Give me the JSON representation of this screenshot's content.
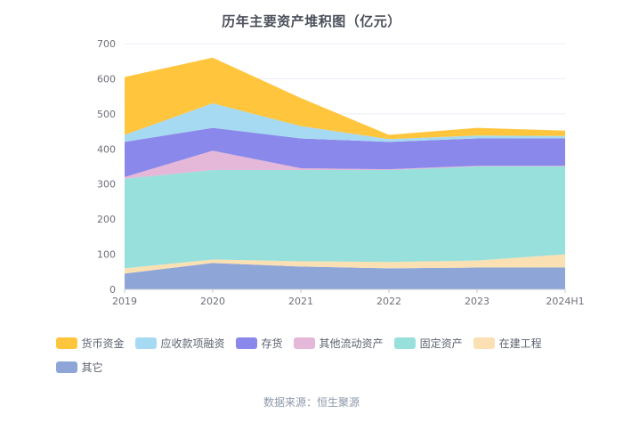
{
  "title": "历年主要资产堆积图（亿元）",
  "footer": "数据来源：恒生聚源",
  "chart_data": {
    "type": "area",
    "stacked": true,
    "title": "历年主要资产堆积图（亿元）",
    "x": [
      "2019",
      "2020",
      "2021",
      "2022",
      "2023",
      "2024H1"
    ],
    "xlabel": "",
    "ylabel": "",
    "ylim": [
      0,
      700
    ],
    "y_ticks": [
      0,
      100,
      200,
      300,
      400,
      500,
      600,
      700
    ],
    "grid": true,
    "legend_position": "bottom",
    "series": [
      {
        "key": "monetary-funds",
        "name": "货币资金",
        "color": "#FFC53D",
        "values": [
          165,
          130,
          80,
          12,
          22,
          15
        ]
      },
      {
        "key": "receivables-financing",
        "name": "应收款项融资",
        "color": "#A6D9F2",
        "values": [
          20,
          70,
          35,
          8,
          8,
          7
        ]
      },
      {
        "key": "inventory",
        "name": "存货",
        "color": "#8A88EA",
        "values": [
          100,
          65,
          85,
          78,
          78,
          78
        ]
      },
      {
        "key": "other-current-assets",
        "name": "其他流动资产",
        "color": "#E5B8D9",
        "values": [
          5,
          55,
          5,
          2,
          2,
          2
        ]
      },
      {
        "key": "fixed-assets",
        "name": "固定资产",
        "color": "#98E0DB",
        "values": [
          255,
          255,
          260,
          262,
          268,
          250
        ]
      },
      {
        "key": "construction-in-progress",
        "name": "在建工程",
        "color": "#FAE0B2",
        "values": [
          15,
          10,
          15,
          18,
          20,
          38
        ]
      },
      {
        "key": "other",
        "name": "其它",
        "color": "#8EA5D8",
        "values": [
          45,
          75,
          65,
          60,
          62,
          62
        ]
      }
    ],
    "stack_order_bottom_to_top": [
      "other",
      "construction-in-progress",
      "fixed-assets",
      "other-current-assets",
      "inventory",
      "receivables-financing",
      "monetary-funds"
    ],
    "axis_label_color": "#6E7079",
    "gridline_color": "#E8ECF4",
    "axis_line_color": "#C2C8D4"
  }
}
